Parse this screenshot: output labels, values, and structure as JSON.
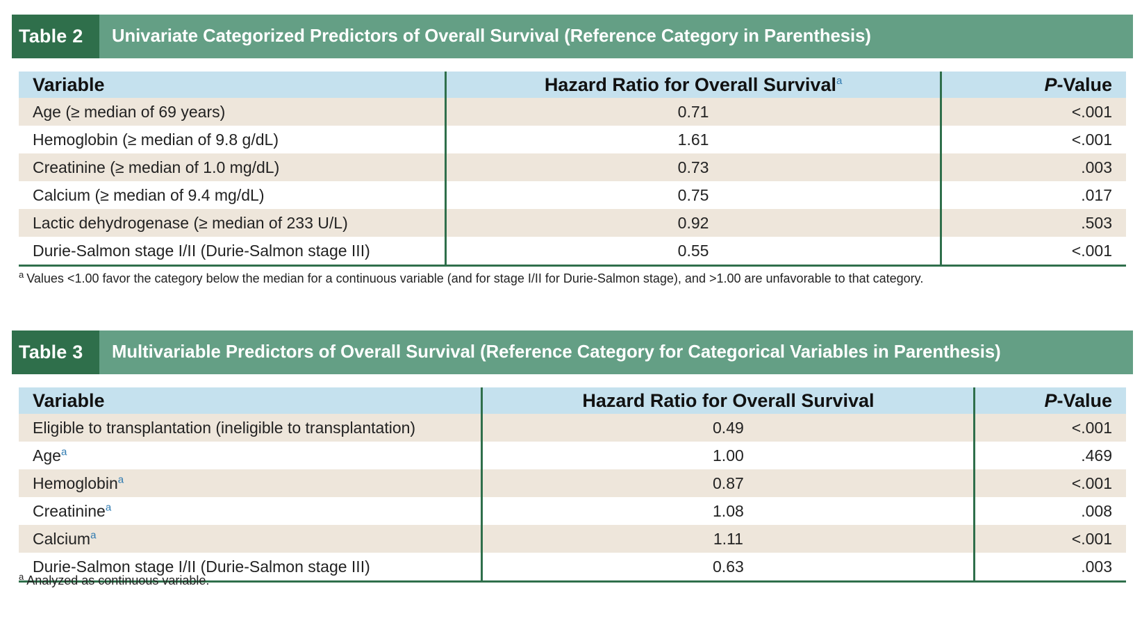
{
  "table2": {
    "number": "Table 2",
    "title": "Univariate Categorized Predictors of Overall Survival (Reference Category in Parenthesis)",
    "headers": {
      "variable": "Variable",
      "hazard": "Hazard Ratio for Overall Survival",
      "hazard_sup": "a",
      "pvalue_italic": "P",
      "pvalue_rest": "-Value"
    },
    "rows": [
      {
        "variable": "Age (≥ median of 69 years)",
        "hazard": "0.71",
        "pvalue": "<.001"
      },
      {
        "variable": "Hemoglobin (≥ median of 9.8 g/dL)",
        "hazard": "1.61",
        "pvalue": "<.001"
      },
      {
        "variable": "Creatinine (≥ median of 1.0 mg/dL)",
        "hazard": "0.73",
        "pvalue": ".003"
      },
      {
        "variable": "Calcium (≥ median of 9.4 mg/dL)",
        "hazard": "0.75",
        "pvalue": ".017"
      },
      {
        "variable": "Lactic dehydrogenase (≥ median of 233 U/L)",
        "hazard": "0.92",
        "pvalue": ".503"
      },
      {
        "variable": "Durie-Salmon stage I/II (Durie-Salmon stage III)",
        "hazard": "0.55",
        "pvalue": "<.001"
      }
    ],
    "footnote_marker": "a",
    "footnote": "Values <1.00 favor the category below the median for a continuous variable (and for stage I/II for Durie-Salmon stage), and >1.00 are unfavorable to that category."
  },
  "table3": {
    "number": "Table 3",
    "title": "Multivariable Predictors of Overall Survival (Reference Category for Categorical Variables in Parenthesis)",
    "headers": {
      "variable": "Variable",
      "hazard": "Hazard Ratio for Overall Survival",
      "pvalue_italic": "P",
      "pvalue_rest": "-Value"
    },
    "rows": [
      {
        "variable": "Eligible to transplantation (ineligible to transplantation)",
        "sup": "",
        "hazard": "0.49",
        "pvalue": "<.001"
      },
      {
        "variable": "Age",
        "sup": "a",
        "hazard": "1.00",
        "pvalue": ".469"
      },
      {
        "variable": "Hemoglobin",
        "sup": "a",
        "hazard": "0.87",
        "pvalue": "<.001"
      },
      {
        "variable": "Creatinine",
        "sup": "a",
        "hazard": "1.08",
        "pvalue": ".008"
      },
      {
        "variable": "Calcium",
        "sup": "a",
        "hazard": "1.11",
        "pvalue": "<.001"
      },
      {
        "variable": "Durie-Salmon stage I/II (Durie-Salmon stage III)",
        "sup": "",
        "hazard": "0.63",
        "pvalue": ".003"
      }
    ],
    "footnote_marker": "a",
    "footnote": "Analyzed as continuous variable."
  },
  "colors": {
    "header_band": "#649f85",
    "table_number_bg": "#2f6f4b",
    "column_header_bg": "#c5e1ee",
    "row_shade": "#eee6db",
    "rule": "#2f6f4b",
    "superscript": "#2f7ab0"
  }
}
